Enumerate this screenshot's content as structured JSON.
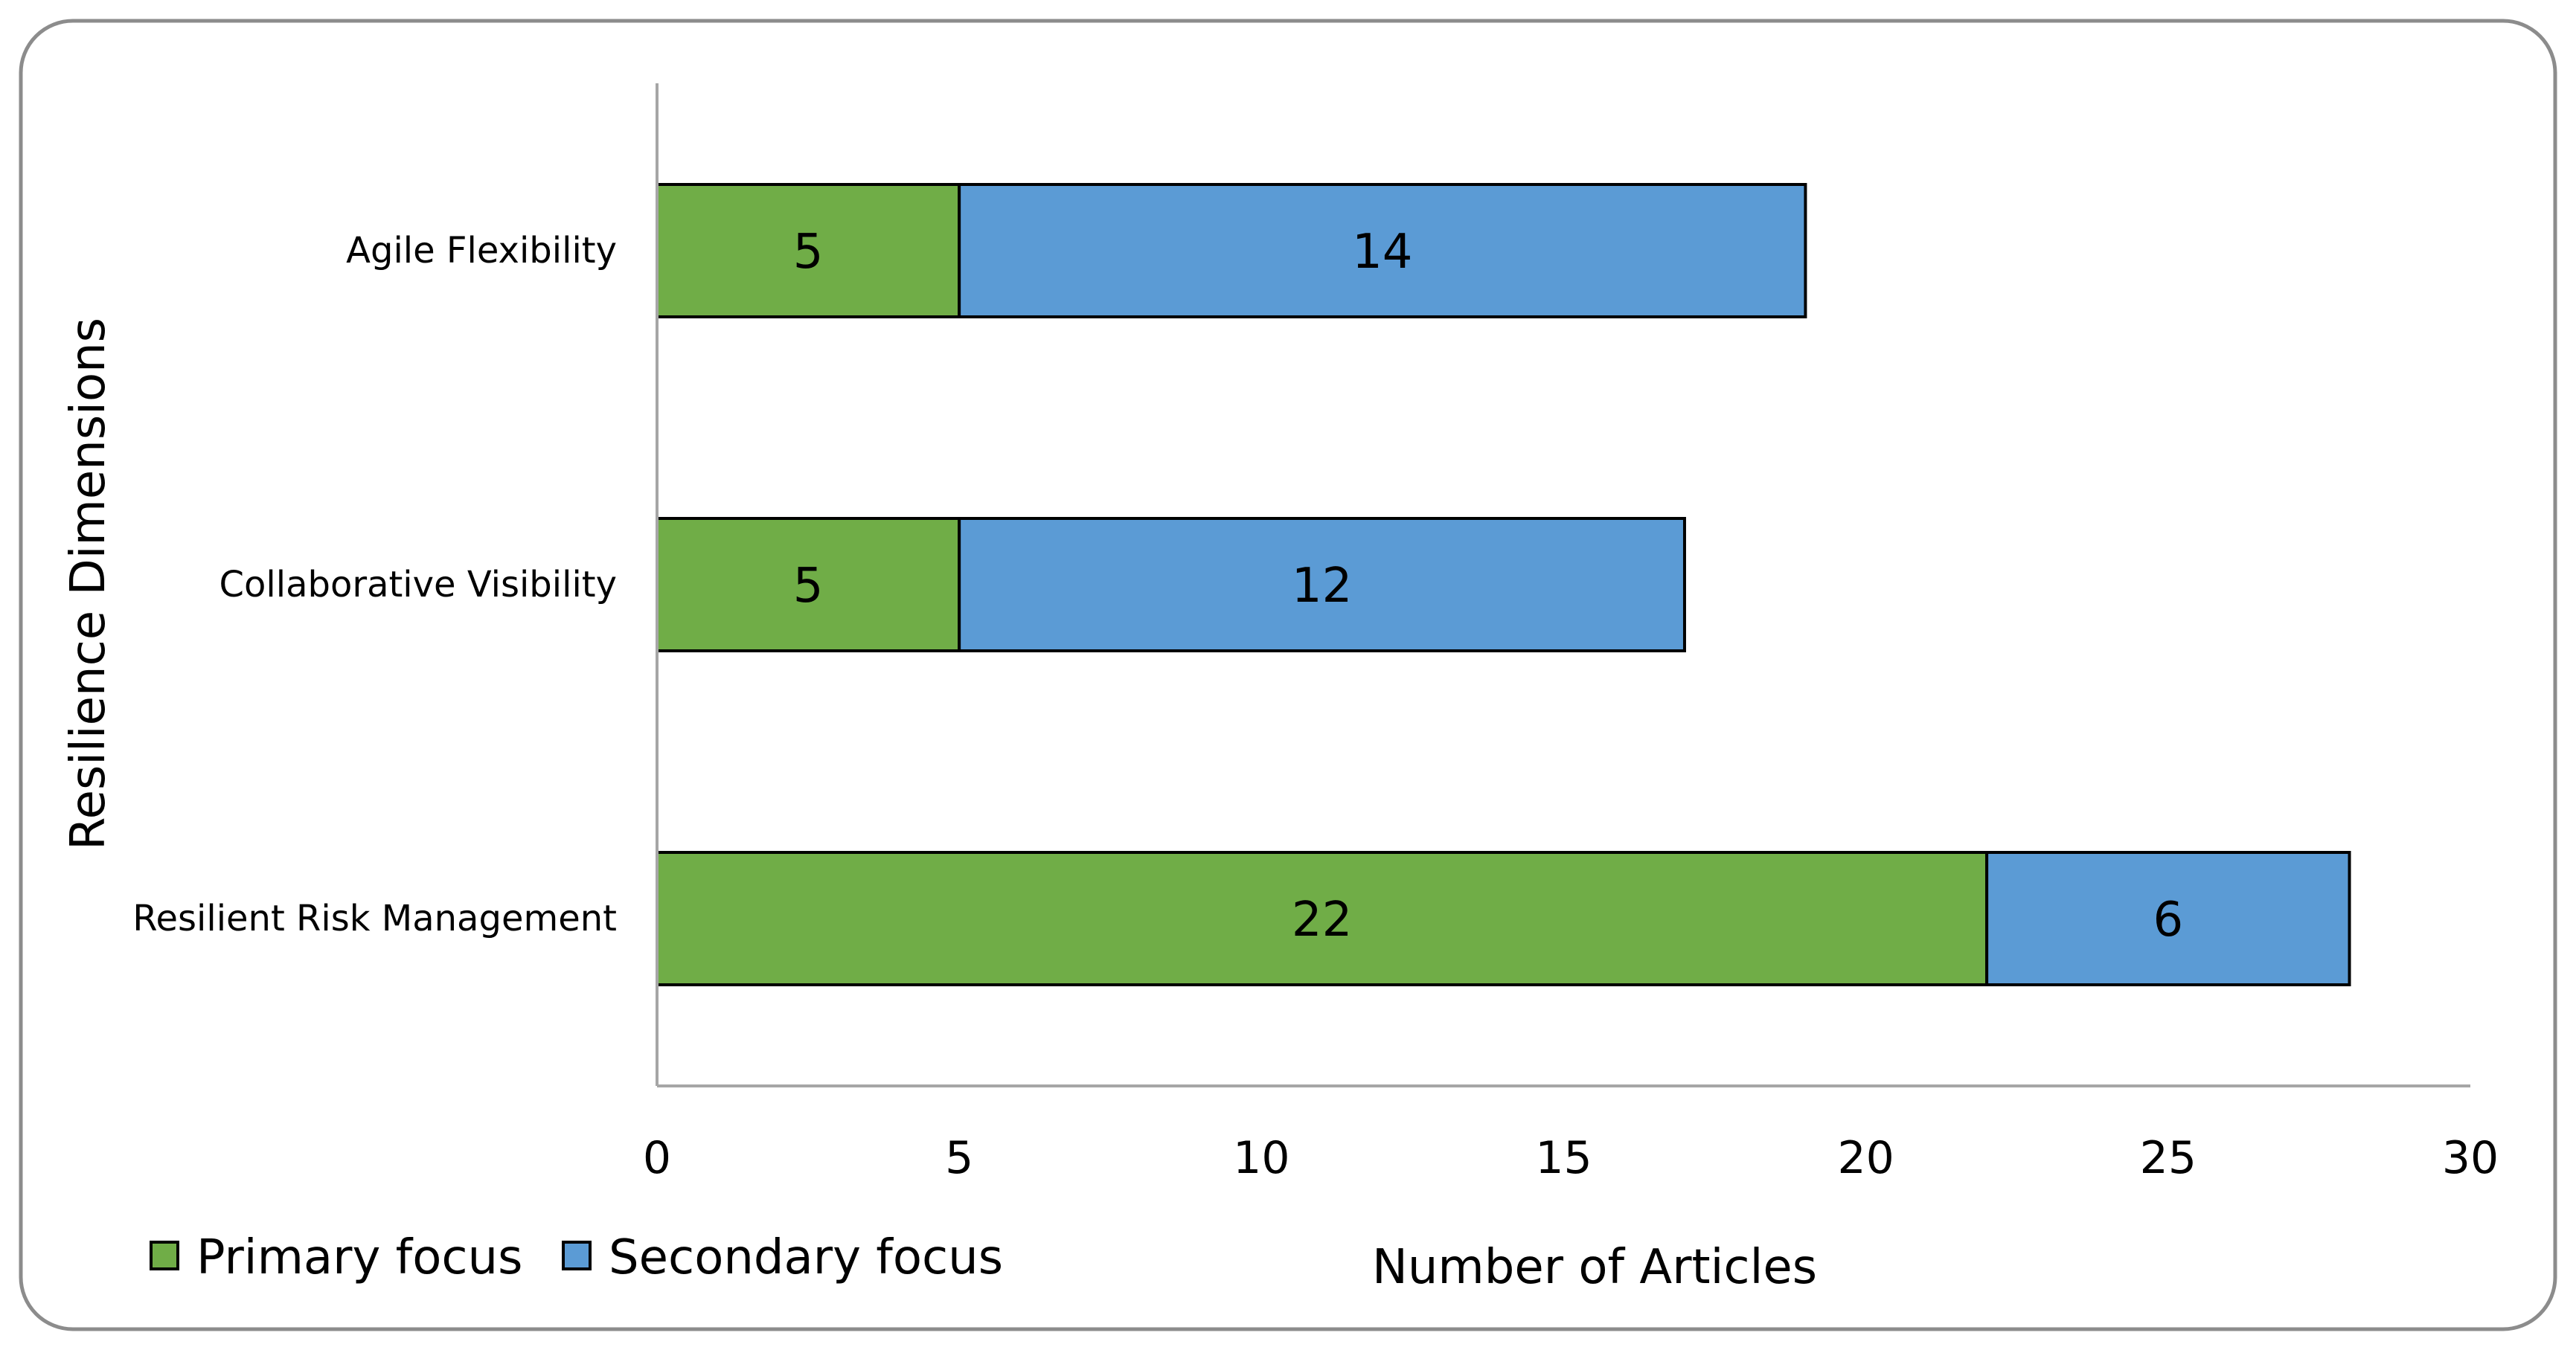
{
  "chart_data": {
    "type": "bar",
    "orientation": "horizontal",
    "stacked": true,
    "categories": [
      "Agile Flexibility",
      "Collaborative Visibility",
      "Resilient Risk Management"
    ],
    "series": [
      {
        "name": "Primary focus",
        "color": "#70ad47",
        "values": [
          5,
          5,
          22
        ]
      },
      {
        "name": "Secondary focus",
        "color": "#5b9bd5",
        "values": [
          14,
          12,
          6
        ]
      }
    ],
    "xlabel": "Number of Articles",
    "ylabel": "Resilience Dimensions",
    "xlim": [
      0,
      30
    ],
    "xticks": [
      "0",
      "5",
      "10",
      "15",
      "20",
      "25",
      "30"
    ],
    "data_labels": true,
    "grid": false,
    "legend_position": "bottom-left"
  }
}
